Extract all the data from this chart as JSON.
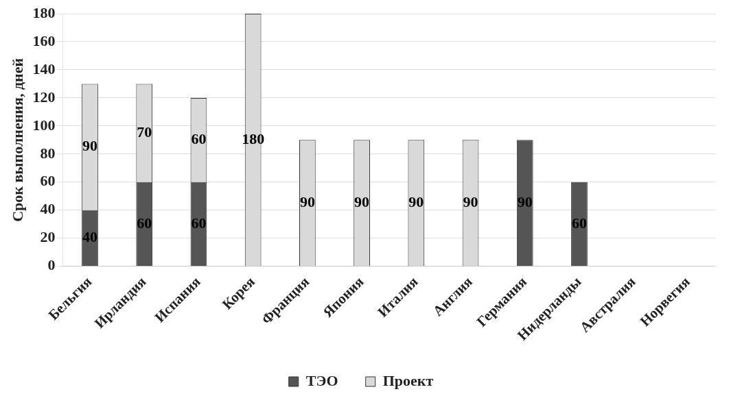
{
  "chart_data": {
    "type": "bar",
    "ylabel": "Срок выполнения, дней",
    "categories": [
      "Бельгия",
      "Ирландия",
      "Испания",
      "Корея",
      "Франция",
      "Япония",
      "Италия",
      "Англия",
      "Германия",
      "Нидерланды",
      "Австралия",
      "Норвегия"
    ],
    "series": [
      {
        "name": "ТЭО",
        "color": "#555555",
        "values": [
          40,
          60,
          60,
          null,
          null,
          null,
          null,
          null,
          90,
          60,
          null,
          null
        ]
      },
      {
        "name": "Проект",
        "color": "#d9d9d9",
        "values": [
          90,
          70,
          60,
          180,
          90,
          90,
          90,
          90,
          null,
          null,
          null,
          null
        ]
      }
    ],
    "stacked": true,
    "ylim": [
      0,
      180
    ],
    "yticks": [
      0,
      20,
      40,
      60,
      80,
      100,
      120,
      140,
      160,
      180
    ],
    "grid": "y",
    "legend": "bottom",
    "data_labels": true
  }
}
